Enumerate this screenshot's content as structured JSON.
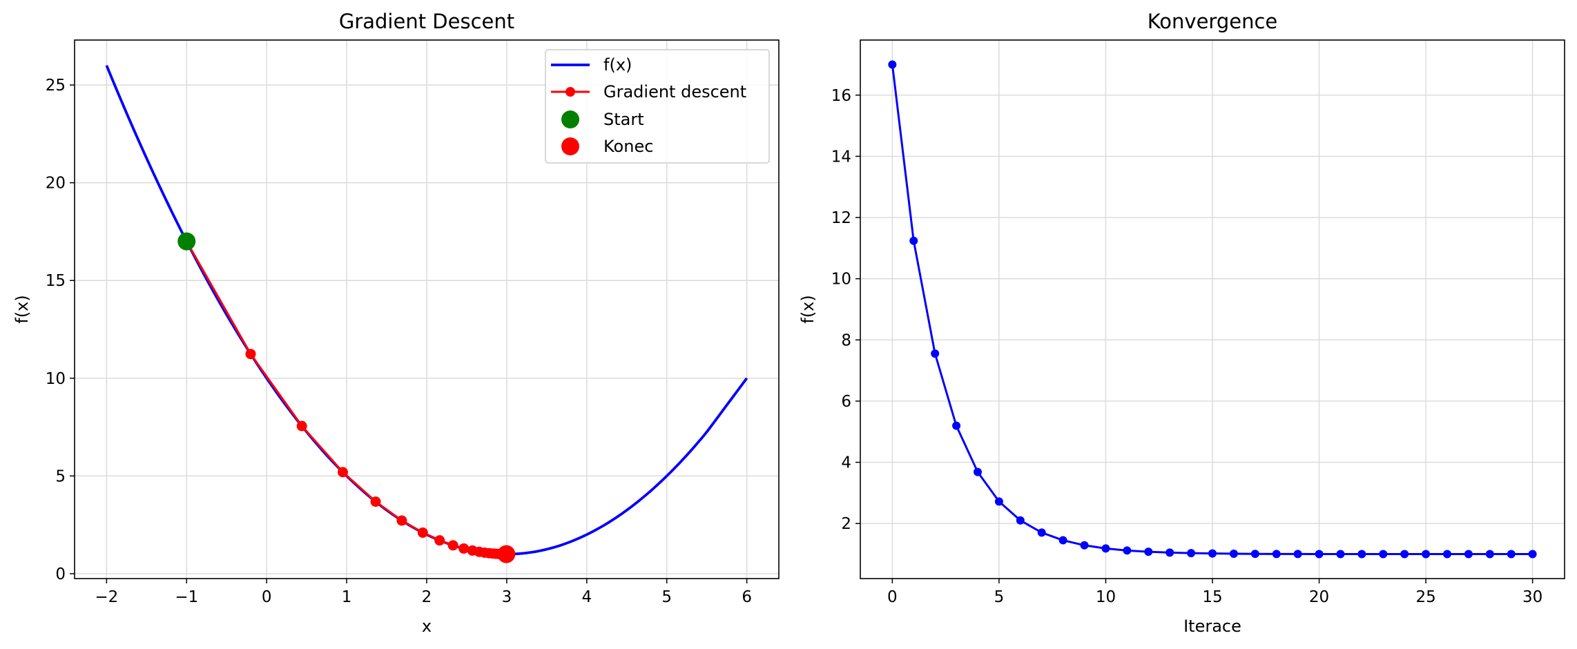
{
  "colors": {
    "blue": "#0000ff",
    "red": "#ff0000",
    "green": "#008000",
    "grid": "#d9d9d9"
  },
  "chart_data": [
    {
      "type": "line",
      "title": "Gradient Descent",
      "xlabel": "x",
      "ylabel": "f(x)",
      "xlim": [
        -2.4,
        6.4
      ],
      "ylim": [
        -0.25,
        27.3
      ],
      "xticks": [
        -2,
        -1,
        0,
        1,
        2,
        3,
        4,
        5,
        6
      ],
      "xtick_labels": [
        "−2",
        "−1",
        "0",
        "1",
        "2",
        "3",
        "4",
        "5",
        "6"
      ],
      "yticks": [
        0,
        5,
        10,
        15,
        20,
        25
      ],
      "ytick_labels": [
        "0",
        "5",
        "10",
        "15",
        "20",
        "25"
      ],
      "grid": true,
      "legend_position": "top-right",
      "series": [
        {
          "name": "f(x)",
          "kind": "line",
          "color": "#0000ff",
          "x": [
            -2.0,
            -1.5,
            -1.0,
            -0.5,
            0.0,
            0.5,
            1.0,
            1.5,
            2.0,
            2.5,
            3.0,
            3.5,
            4.0,
            4.5,
            5.0,
            5.5,
            6.0
          ],
          "y": [
            26.0,
            21.25,
            17.0,
            13.25,
            10.0,
            7.25,
            5.0,
            3.25,
            2.0,
            1.25,
            1.0,
            1.25,
            2.0,
            3.25,
            5.0,
            7.25,
            10.0
          ]
        },
        {
          "name": "Gradient descent",
          "kind": "line-markers",
          "color": "#ff0000",
          "x": [
            -1.0,
            -0.2,
            0.44,
            0.952,
            1.362,
            1.689,
            1.951,
            2.161,
            2.329,
            2.463,
            2.571,
            2.656,
            2.725,
            2.78,
            2.824,
            2.859,
            2.887,
            2.91,
            2.928,
            2.942,
            2.954,
            2.963,
            2.97,
            2.976,
            2.981,
            2.985,
            2.988,
            2.99,
            2.992,
            2.994,
            2.995
          ],
          "y": [
            17.0,
            11.24,
            7.554,
            5.194,
            3.684,
            2.718,
            2.1,
            1.704,
            1.451,
            1.288,
            1.184,
            1.118,
            1.076,
            1.048,
            1.031,
            1.02,
            1.013,
            1.008,
            1.005,
            1.003,
            1.002,
            1.001,
            1.001,
            1.001,
            1.0,
            1.0,
            1.0,
            1.0,
            1.0,
            1.0,
            1.0
          ]
        },
        {
          "name": "Start",
          "kind": "point",
          "color": "#008000",
          "x": [
            -1.0
          ],
          "y": [
            17.0
          ]
        },
        {
          "name": "Konec",
          "kind": "point",
          "color": "#ff0000",
          "x": [
            2.995
          ],
          "y": [
            1.0
          ]
        }
      ]
    },
    {
      "type": "line",
      "title": "Konvergence",
      "xlabel": "Iterace",
      "ylabel": "f(x)",
      "xlim": [
        -1.5,
        31.5
      ],
      "ylim": [
        0.2,
        17.8
      ],
      "xticks": [
        0,
        5,
        10,
        15,
        20,
        25,
        30
      ],
      "xtick_labels": [
        "0",
        "5",
        "10",
        "15",
        "20",
        "25",
        "30"
      ],
      "yticks": [
        2,
        4,
        6,
        8,
        10,
        12,
        14,
        16
      ],
      "ytick_labels": [
        "2",
        "4",
        "6",
        "8",
        "10",
        "12",
        "14",
        "16"
      ],
      "grid": true,
      "series": [
        {
          "kind": "line-markers",
          "color": "#0000ff",
          "x": [
            0,
            1,
            2,
            3,
            4,
            5,
            6,
            7,
            8,
            9,
            10,
            11,
            12,
            13,
            14,
            15,
            16,
            17,
            18,
            19,
            20,
            21,
            22,
            23,
            24,
            25,
            26,
            27,
            28,
            29,
            30
          ],
          "y": [
            17.0,
            11.24,
            7.554,
            5.194,
            3.684,
            2.718,
            2.1,
            1.704,
            1.451,
            1.288,
            1.184,
            1.118,
            1.076,
            1.048,
            1.031,
            1.02,
            1.013,
            1.008,
            1.005,
            1.003,
            1.002,
            1.001,
            1.001,
            1.001,
            1.0,
            1.0,
            1.0,
            1.0,
            1.0,
            1.0,
            1.0
          ]
        }
      ]
    }
  ]
}
